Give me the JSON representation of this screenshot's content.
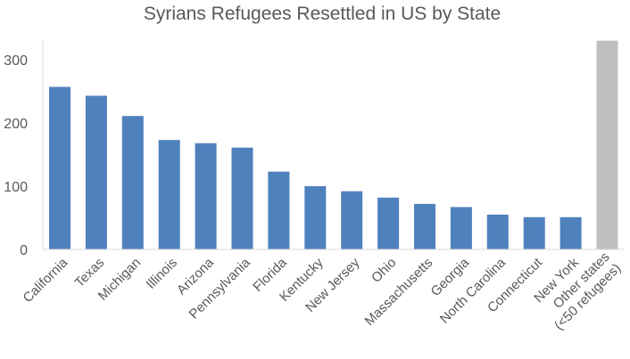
{
  "chart_data": {
    "type": "bar",
    "title": "Syrians Refugees Resettled in US by State",
    "xlabel": "",
    "ylabel": "",
    "ylim": [
      0,
      330
    ],
    "yticks": [
      0,
      100,
      200,
      300
    ],
    "grid": false,
    "categories": [
      "California",
      "Texas",
      "Michigan",
      "Illinois",
      "Arizona",
      "Pennsylvania",
      "Florida",
      "Kentucky",
      "New Jersey",
      "Ohio",
      "Massachusetts",
      "Georgia",
      "North Carolina",
      "Connecticut",
      "New York",
      "Other states (<50 refugees)"
    ],
    "category_lines": [
      [
        "California"
      ],
      [
        "Texas"
      ],
      [
        "Michigan"
      ],
      [
        "Illinois"
      ],
      [
        "Arizona"
      ],
      [
        "Pennsylvania"
      ],
      [
        "Florida"
      ],
      [
        "Kentucky"
      ],
      [
        "New Jersey"
      ],
      [
        "Ohio"
      ],
      [
        "Massachusetts"
      ],
      [
        "Georgia"
      ],
      [
        "North Carolina"
      ],
      [
        "Connecticut"
      ],
      [
        "New York"
      ],
      [
        "Other states",
        "(<50 refugees)"
      ]
    ],
    "values": [
      257,
      243,
      211,
      173,
      168,
      161,
      123,
      100,
      92,
      82,
      72,
      67,
      55,
      51,
      51,
      330
    ],
    "colors": {
      "primary": "#4F81BD",
      "other": "#BFBFBF",
      "axis": "#D9D9D9"
    }
  }
}
